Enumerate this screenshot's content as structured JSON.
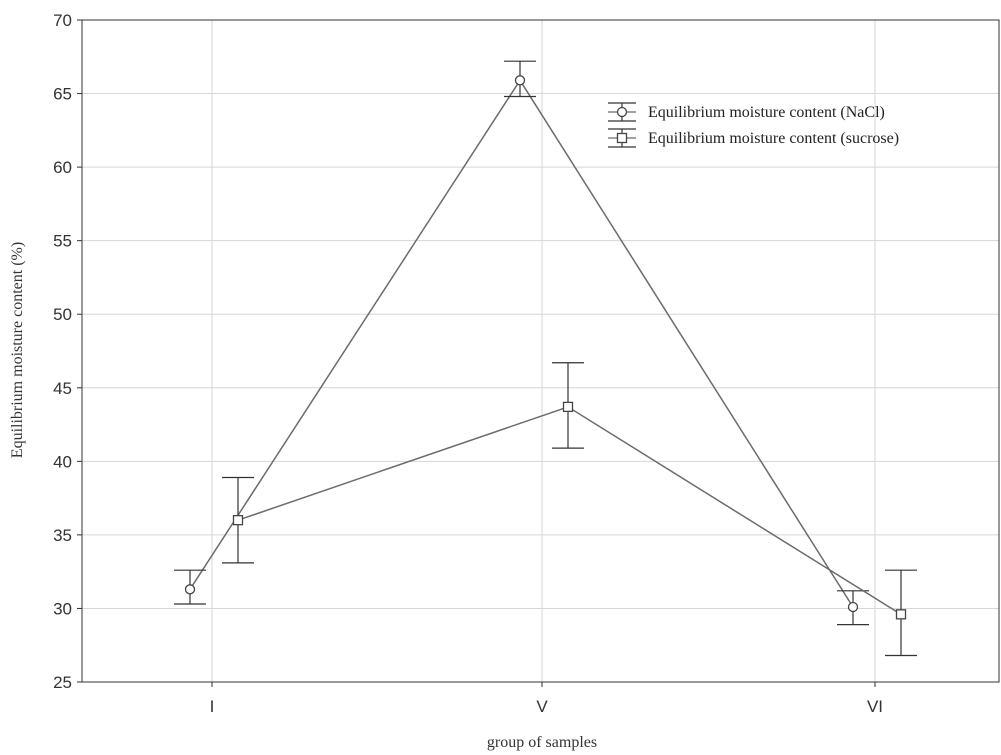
{
  "chart_data": {
    "type": "line",
    "title": "",
    "xlabel": "group of samples",
    "ylabel": "Equilibrium moisture content (%)",
    "categories": [
      "I",
      "V",
      "VI"
    ],
    "ylim": [
      25,
      70
    ],
    "yticks": [
      25,
      30,
      35,
      40,
      45,
      50,
      55,
      60,
      65,
      70
    ],
    "grid": true,
    "legend_position": "top-right",
    "series": [
      {
        "name": "Equilibrium moisture content (NaCl)",
        "marker": "circle",
        "values": [
          31.3,
          65.9,
          30.1
        ],
        "error_low": [
          30.3,
          64.8,
          28.9
        ],
        "error_high": [
          32.6,
          67.2,
          31.2
        ]
      },
      {
        "name": "Equilibrium moisture content (sucrose)",
        "marker": "square",
        "values": [
          36.0,
          43.7,
          29.6
        ],
        "error_low": [
          33.1,
          40.9,
          26.8
        ],
        "error_high": [
          38.9,
          46.7,
          32.6
        ]
      }
    ],
    "colors": {
      "line": "#6b6b6b",
      "grid": "#d6d6d6",
      "axis": "#333333"
    }
  }
}
